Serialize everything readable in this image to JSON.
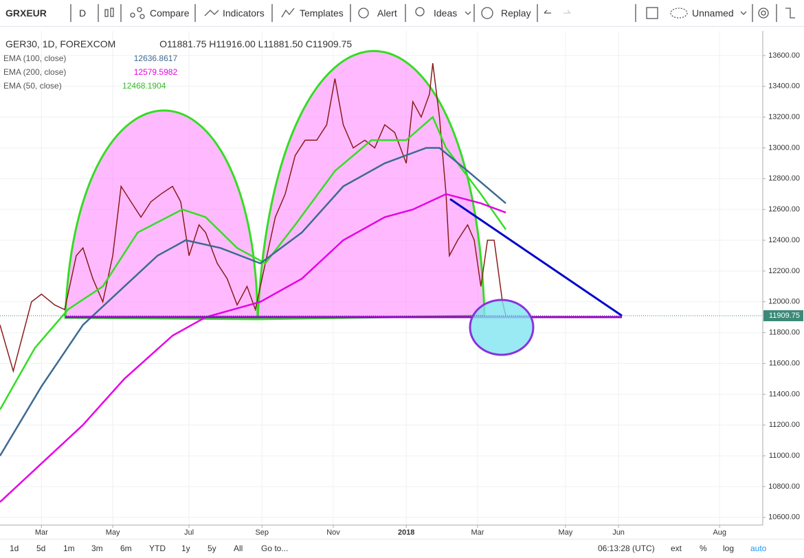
{
  "toolbar": {
    "symbol": "GRXEUR",
    "interval": "D",
    "compare": "Compare",
    "indicators": "Indicators",
    "templates": "Templates",
    "alert": "Alert",
    "ideas": "Ideas",
    "replay": "Replay",
    "layout": "Unnamed"
  },
  "chart_data": {
    "type": "line",
    "title": "GER30, 1D, FOREXCOM",
    "open": "O11881.75",
    "high": "H11916.00",
    "low": "L11881.50",
    "close": "C11909.75",
    "indicators": [
      {
        "name": "EMA (100, close)",
        "value": "12636.8617"
      },
      {
        "name": "EMA (200, close)",
        "value": "12579.5982"
      },
      {
        "name": "EMA (50, close)",
        "value": "12468.1904"
      }
    ],
    "last_price": 11909.75,
    "xlim": [
      0,
      460
    ],
    "xticks": [
      {
        "value": 25,
        "label": "Mar"
      },
      {
        "value": 68,
        "label": "May"
      },
      {
        "value": 114,
        "label": "Jul"
      },
      {
        "value": 158,
        "label": "Sep"
      },
      {
        "value": 201,
        "label": "Nov"
      },
      {
        "value": 245,
        "label": "2018"
      },
      {
        "value": 288,
        "label": "Mar"
      },
      {
        "value": 341,
        "label": "May"
      },
      {
        "value": 373,
        "label": "Jun"
      },
      {
        "value": 434,
        "label": "Aug"
      }
    ],
    "ylim": [
      10550,
      13760
    ],
    "yticks": [
      {
        "value": 10600,
        "label": "10600.00"
      },
      {
        "value": 10800,
        "label": "10800.00"
      },
      {
        "value": 11000,
        "label": "11000.00"
      },
      {
        "value": 11200,
        "label": "11200.00"
      },
      {
        "value": 11400,
        "label": "11400.00"
      },
      {
        "value": 11600,
        "label": "11600.00"
      },
      {
        "value": 11800,
        "label": "11800.00"
      },
      {
        "value": 12000,
        "label": "12000.00"
      },
      {
        "value": 12200,
        "label": "12200.00"
      },
      {
        "value": 12400,
        "label": "12400.00"
      },
      {
        "value": 12600,
        "label": "12600.00"
      },
      {
        "value": 12800,
        "label": "12800.00"
      },
      {
        "value": 13000,
        "label": "13000.00"
      },
      {
        "value": 13200,
        "label": "13200.00"
      },
      {
        "value": 13400,
        "label": "13400.00"
      },
      {
        "value": 13600,
        "label": "13600.00"
      }
    ],
    "grid": true,
    "series": [
      {
        "name": "GER30",
        "color": "#8b1a1a",
        "x": [
          0,
          8,
          19,
          25,
          33,
          39,
          46,
          50,
          56,
          62,
          68,
          73,
          79,
          85,
          91,
          97,
          104,
          109,
          114,
          120,
          124,
          131,
          137,
          143,
          149,
          154,
          160,
          166,
          172,
          178,
          184,
          191,
          197,
          202,
          207,
          213,
          220,
          226,
          232,
          238,
          245,
          249,
          254,
          259,
          261,
          265,
          269,
          271,
          276,
          282,
          286,
          290,
          294,
          298,
          303,
          305
        ],
        "values": [
          11850,
          11550,
          12000,
          12050,
          11980,
          11950,
          12300,
          12350,
          12150,
          12000,
          12300,
          12750,
          12650,
          12550,
          12650,
          12700,
          12750,
          12650,
          12300,
          12500,
          12450,
          12250,
          12150,
          11980,
          12100,
          11950,
          12250,
          12550,
          12700,
          12950,
          13050,
          13050,
          13150,
          13450,
          13150,
          13000,
          13050,
          13000,
          13150,
          13100,
          12900,
          13300,
          13200,
          13350,
          13550,
          13200,
          12700,
          12300,
          12400,
          12500,
          12400,
          12100,
          12400,
          12400,
          12000,
          11910
        ]
      },
      {
        "name": "EMA (50, close)",
        "color": "#33dd22",
        "x": [
          0,
          21,
          41,
          62,
          83,
          110,
          124,
          143,
          160,
          178,
          202,
          224,
          245,
          261,
          269,
          290,
          305
        ],
        "values": [
          11300,
          11700,
          11950,
          12100,
          12450,
          12600,
          12550,
          12350,
          12250,
          12500,
          12850,
          13050,
          13050,
          13200,
          13000,
          12700,
          12470
        ]
      },
      {
        "name": "EMA (100, close)",
        "color": "#3d6a91",
        "x": [
          0,
          25,
          50,
          75,
          95,
          112,
          133,
          157,
          182,
          207,
          232,
          257,
          265,
          282,
          305
        ],
        "values": [
          11000,
          11450,
          11850,
          12100,
          12300,
          12400,
          12350,
          12250,
          12450,
          12750,
          12900,
          13000,
          13000,
          12850,
          12640
        ]
      },
      {
        "name": "EMA (200, close)",
        "color": "#e600e6",
        "x": [
          0,
          25,
          50,
          75,
          104,
          124,
          157,
          182,
          207,
          232,
          249,
          269,
          290,
          305
        ],
        "values": [
          10700,
          10950,
          11200,
          11500,
          11780,
          11900,
          12000,
          12150,
          12400,
          12550,
          12600,
          12700,
          12640,
          12580
        ]
      }
    ]
  },
  "bottom_bar": {
    "ranges": [
      "1d",
      "5d",
      "1m",
      "3m",
      "6m",
      "YTD",
      "1y",
      "5y",
      "All"
    ],
    "goto": "Go to...",
    "time": "06:13:28 (UTC)",
    "ext": "ext",
    "percent": "%",
    "log": "log",
    "auto": "auto"
  }
}
